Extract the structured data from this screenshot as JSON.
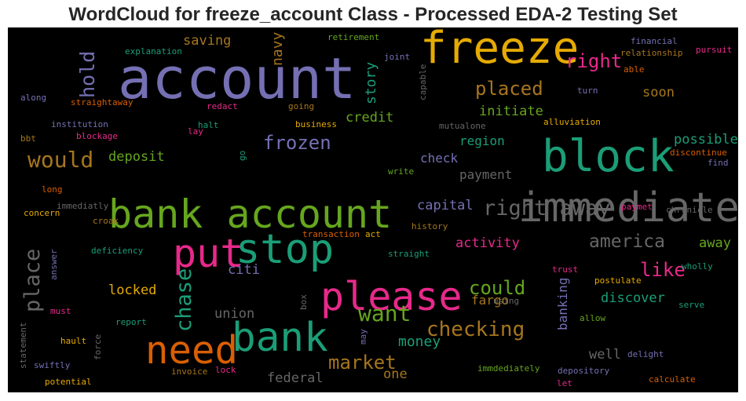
{
  "chart_data": {
    "type": "wordcloud",
    "title": "WordCloud for freeze_account Class - Processed EDA-2 Testing Set",
    "background": "#000000",
    "palette": [
      "#7570b3",
      "#1b9e77",
      "#d95f02",
      "#e7298a",
      "#66a61e",
      "#e6ab02",
      "#a6761d",
      "#666666"
    ],
    "words": [
      {
        "text": "account",
        "weight": 1.0,
        "color": "#7570b3",
        "rotated": false
      },
      {
        "text": "freeze",
        "weight": 0.8,
        "color": "#e6ab02",
        "rotated": false
      },
      {
        "text": "block",
        "weight": 0.8,
        "color": "#1b9e77",
        "rotated": false
      },
      {
        "text": "please",
        "weight": 0.78,
        "color": "#e7298a",
        "rotated": false
      },
      {
        "text": "bank account",
        "weight": 0.72,
        "color": "#66a61e",
        "rotated": false
      },
      {
        "text": "put",
        "weight": 0.72,
        "color": "#e7298a",
        "rotated": false
      },
      {
        "text": "immediately",
        "weight": 0.58,
        "color": "#666666",
        "rotated": false
      },
      {
        "text": "stop",
        "weight": 0.58,
        "color": "#1b9e77",
        "rotated": false
      },
      {
        "text": "bank",
        "weight": 0.55,
        "color": "#1b9e77",
        "rotated": false
      },
      {
        "text": "need",
        "weight": 0.52,
        "color": "#d95f02",
        "rotated": false
      },
      {
        "text": "want",
        "weight": 0.48,
        "color": "#66a61e",
        "rotated": false
      },
      {
        "text": "would",
        "weight": 0.46,
        "color": "#a6761d",
        "rotated": false
      },
      {
        "text": "place",
        "weight": 0.44,
        "color": "#666666",
        "rotated": true
      },
      {
        "text": "chase",
        "weight": 0.44,
        "color": "#1b9e77",
        "rotated": true
      },
      {
        "text": "right away",
        "weight": 0.42,
        "color": "#666666",
        "rotated": false
      },
      {
        "text": "checking",
        "weight": 0.4,
        "color": "#a6761d",
        "rotated": false
      },
      {
        "text": "hold",
        "weight": 0.36,
        "color": "#7570b3",
        "rotated": true
      },
      {
        "text": "frozen",
        "weight": 0.34,
        "color": "#7570b3",
        "rotated": false
      },
      {
        "text": "placed",
        "weight": 0.32,
        "color": "#a6761d",
        "rotated": false
      },
      {
        "text": "right",
        "weight": 0.32,
        "color": "#e7298a",
        "rotated": false
      },
      {
        "text": "could",
        "weight": 0.32,
        "color": "#66a61e",
        "rotated": false
      },
      {
        "text": "like",
        "weight": 0.32,
        "color": "#e7298a",
        "rotated": false
      },
      {
        "text": "market",
        "weight": 0.32,
        "color": "#a6761d",
        "rotated": false
      },
      {
        "text": "america",
        "weight": 0.3,
        "color": "#666666",
        "rotated": false
      },
      {
        "text": "story",
        "weight": 0.28,
        "color": "#1b9e77",
        "rotated": true
      },
      {
        "text": "navy",
        "weight": 0.28,
        "color": "#a6761d",
        "rotated": true
      },
      {
        "text": "money",
        "weight": 0.28,
        "color": "#1b9e77",
        "rotated": false
      },
      {
        "text": "federal",
        "weight": 0.26,
        "color": "#666666",
        "rotated": false
      },
      {
        "text": "initiate",
        "weight": 0.26,
        "color": "#66a61e",
        "rotated": false
      },
      {
        "text": "soon",
        "weight": 0.26,
        "color": "#a6761d",
        "rotated": false
      },
      {
        "text": "possible",
        "weight": 0.26,
        "color": "#1b9e77",
        "rotated": false
      },
      {
        "text": "capital",
        "weight": 0.26,
        "color": "#7570b3",
        "rotated": false
      },
      {
        "text": "activity",
        "weight": 0.26,
        "color": "#e7298a",
        "rotated": false
      },
      {
        "text": "away",
        "weight": 0.26,
        "color": "#66a61e",
        "rotated": false
      },
      {
        "text": "citi",
        "weight": 0.26,
        "color": "#7570b3",
        "rotated": false
      },
      {
        "text": "union",
        "weight": 0.26,
        "color": "#666666",
        "rotated": false
      },
      {
        "text": "locked",
        "weight": 0.24,
        "color": "#e6ab02",
        "rotated": false
      },
      {
        "text": "discover",
        "weight": 0.24,
        "color": "#1b9e77",
        "rotated": false
      },
      {
        "text": "one",
        "weight": 0.24,
        "color": "#a6761d",
        "rotated": false
      },
      {
        "text": "well",
        "weight": 0.24,
        "color": "#666666",
        "rotated": false
      },
      {
        "text": "saving",
        "weight": 0.24,
        "color": "#a6761d",
        "rotated": false
      },
      {
        "text": "credit",
        "weight": 0.24,
        "color": "#66a61e",
        "rotated": false
      },
      {
        "text": "deposit",
        "weight": 0.24,
        "color": "#66a61e",
        "rotated": false
      },
      {
        "text": "check",
        "weight": 0.22,
        "color": "#7570b3",
        "rotated": false
      },
      {
        "text": "region",
        "weight": 0.22,
        "color": "#1b9e77",
        "rotated": false
      },
      {
        "text": "fargo",
        "weight": 0.22,
        "color": "#a6761d",
        "rotated": false
      },
      {
        "text": "payment",
        "weight": 0.22,
        "color": "#666666",
        "rotated": false
      },
      {
        "text": "banking",
        "weight": 0.2,
        "color": "#7570b3",
        "rotated": true
      },
      {
        "text": "explanation",
        "weight": 0.16,
        "color": "#1b9e77",
        "rotated": false
      },
      {
        "text": "retirement",
        "weight": 0.16,
        "color": "#66a61e",
        "rotated": false
      },
      {
        "text": "joint",
        "weight": 0.15,
        "color": "#7570b3",
        "rotated": false
      },
      {
        "text": "capable",
        "weight": 0.15,
        "color": "#666666",
        "rotated": true
      },
      {
        "text": "financial",
        "weight": 0.16,
        "color": "#7570b3",
        "rotated": false
      },
      {
        "text": "relationship",
        "weight": 0.16,
        "color": "#a6761d",
        "rotated": false
      },
      {
        "text": "pursuit",
        "weight": 0.16,
        "color": "#e7298a",
        "rotated": false
      },
      {
        "text": "able",
        "weight": 0.15,
        "color": "#d95f02",
        "rotated": false
      },
      {
        "text": "turn",
        "weight": 0.15,
        "color": "#7570b3",
        "rotated": false
      },
      {
        "text": "along",
        "weight": 0.16,
        "color": "#7570b3",
        "rotated": false
      },
      {
        "text": "straightaway",
        "weight": 0.16,
        "color": "#d95f02",
        "rotated": false
      },
      {
        "text": "redact",
        "weight": 0.15,
        "color": "#e7298a",
        "rotated": false
      },
      {
        "text": "going",
        "weight": 0.15,
        "color": "#a6761d",
        "rotated": false
      },
      {
        "text": "institution",
        "weight": 0.16,
        "color": "#7570b3",
        "rotated": false
      },
      {
        "text": "business",
        "weight": 0.15,
        "color": "#e6ab02",
        "rotated": false
      },
      {
        "text": "mutualone",
        "weight": 0.15,
        "color": "#666666",
        "rotated": false
      },
      {
        "text": "alluviation",
        "weight": 0.15,
        "color": "#e6ab02",
        "rotated": false
      },
      {
        "text": "bbt",
        "weight": 0.15,
        "color": "#a6761d",
        "rotated": false
      },
      {
        "text": "blockage",
        "weight": 0.15,
        "color": "#e7298a",
        "rotated": false
      },
      {
        "text": "lay",
        "weight": 0.15,
        "color": "#e7298a",
        "rotated": false
      },
      {
        "text": "halt",
        "weight": 0.15,
        "color": "#1b9e77",
        "rotated": false
      },
      {
        "text": "go",
        "weight": 0.15,
        "color": "#1b9e77",
        "rotated": true
      },
      {
        "text": "discontinue",
        "weight": 0.15,
        "color": "#d95f02",
        "rotated": false
      },
      {
        "text": "find",
        "weight": 0.15,
        "color": "#7570b3",
        "rotated": false
      },
      {
        "text": "write",
        "weight": 0.15,
        "color": "#66a61e",
        "rotated": false
      },
      {
        "text": "long",
        "weight": 0.15,
        "color": "#d95f02",
        "rotated": false
      },
      {
        "text": "immediatly",
        "weight": 0.14,
        "color": "#666666",
        "rotated": false
      },
      {
        "text": "paymet",
        "weight": 0.14,
        "color": "#e7298a",
        "rotated": false
      },
      {
        "text": "chronicle",
        "weight": 0.15,
        "color": "#666666",
        "rotated": false
      },
      {
        "text": "concern",
        "weight": 0.15,
        "color": "#e6ab02",
        "rotated": false
      },
      {
        "text": "croak",
        "weight": 0.15,
        "color": "#a6761d",
        "rotated": false
      },
      {
        "text": "history",
        "weight": 0.15,
        "color": "#a6761d",
        "rotated": false
      },
      {
        "text": "transaction",
        "weight": 0.15,
        "color": "#d95f02",
        "rotated": false
      },
      {
        "text": "act",
        "weight": 0.15,
        "color": "#e6ab02",
        "rotated": false
      },
      {
        "text": "deficiency",
        "weight": 0.15,
        "color": "#1b9e77",
        "rotated": false
      },
      {
        "text": "straight",
        "weight": 0.15,
        "color": "#1b9e77",
        "rotated": false
      },
      {
        "text": "answer",
        "weight": 0.14,
        "color": "#7570b3",
        "rotated": true
      },
      {
        "text": "trust",
        "weight": 0.15,
        "color": "#e7298a",
        "rotated": false
      },
      {
        "text": "wholly",
        "weight": 0.15,
        "color": "#1b9e77",
        "rotated": false
      },
      {
        "text": "postulate",
        "weight": 0.15,
        "color": "#e6ab02",
        "rotated": false
      },
      {
        "text": "must",
        "weight": 0.15,
        "color": "#e7298a",
        "rotated": false
      },
      {
        "text": "using",
        "weight": 0.14,
        "color": "#666666",
        "rotated": false
      },
      {
        "text": "box",
        "weight": 0.14,
        "color": "#666666",
        "rotated": true
      },
      {
        "text": "serve",
        "weight": 0.15,
        "color": "#1b9e77",
        "rotated": false
      },
      {
        "text": "report",
        "weight": 0.15,
        "color": "#1b9e77",
        "rotated": false
      },
      {
        "text": "allow",
        "weight": 0.15,
        "color": "#66a61e",
        "rotated": false
      },
      {
        "text": "statement",
        "weight": 0.14,
        "color": "#666666",
        "rotated": true
      },
      {
        "text": "may",
        "weight": 0.14,
        "color": "#7570b3",
        "rotated": true
      },
      {
        "text": "hault",
        "weight": 0.15,
        "color": "#e6ab02",
        "rotated": false
      },
      {
        "text": "force",
        "weight": 0.14,
        "color": "#666666",
        "rotated": true
      },
      {
        "text": "delight",
        "weight": 0.15,
        "color": "#7570b3",
        "rotated": false
      },
      {
        "text": "swiftly",
        "weight": 0.15,
        "color": "#7570b3",
        "rotated": false
      },
      {
        "text": "invoice",
        "weight": 0.15,
        "color": "#a6761d",
        "rotated": false
      },
      {
        "text": "lock",
        "weight": 0.15,
        "color": "#e7298a",
        "rotated": false
      },
      {
        "text": "immdediately",
        "weight": 0.15,
        "color": "#66a61e",
        "rotated": false
      },
      {
        "text": "depository",
        "weight": 0.15,
        "color": "#7570b3",
        "rotated": false
      },
      {
        "text": "potential",
        "weight": 0.15,
        "color": "#e6ab02",
        "rotated": false
      },
      {
        "text": "let",
        "weight": 0.15,
        "color": "#e7298a",
        "rotated": false
      },
      {
        "text": "calculate",
        "weight": 0.15,
        "color": "#d95f02",
        "rotated": false
      }
    ]
  }
}
